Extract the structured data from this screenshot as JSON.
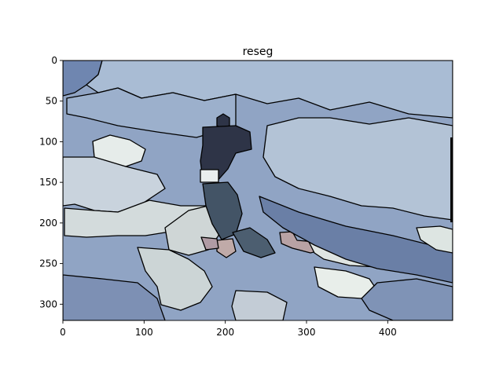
{
  "figure": {
    "title": "reseg",
    "x_ticks": [
      "0",
      "100",
      "200",
      "300",
      "400"
    ],
    "y_ticks": [
      "0",
      "50",
      "100",
      "150",
      "200",
      "250",
      "300"
    ],
    "x_tick_values": [
      0,
      100,
      200,
      300,
      400
    ],
    "y_tick_values": [
      0,
      50,
      100,
      150,
      200,
      250,
      300
    ],
    "xlim": [
      0,
      480
    ],
    "ylim": [
      320,
      0
    ],
    "colors": {
      "base": "#90a4c4",
      "light_blue": "#a9bcd4",
      "pale": "#c9d3dd",
      "very_pale": "#e6ecea",
      "dark_navy": "#2e3447",
      "slate": "#435466",
      "mid_blue": "#6f86b0",
      "steel": "#6a7fa6",
      "rose": "#b09ba4",
      "tan": "#c0aaa8"
    }
  }
}
